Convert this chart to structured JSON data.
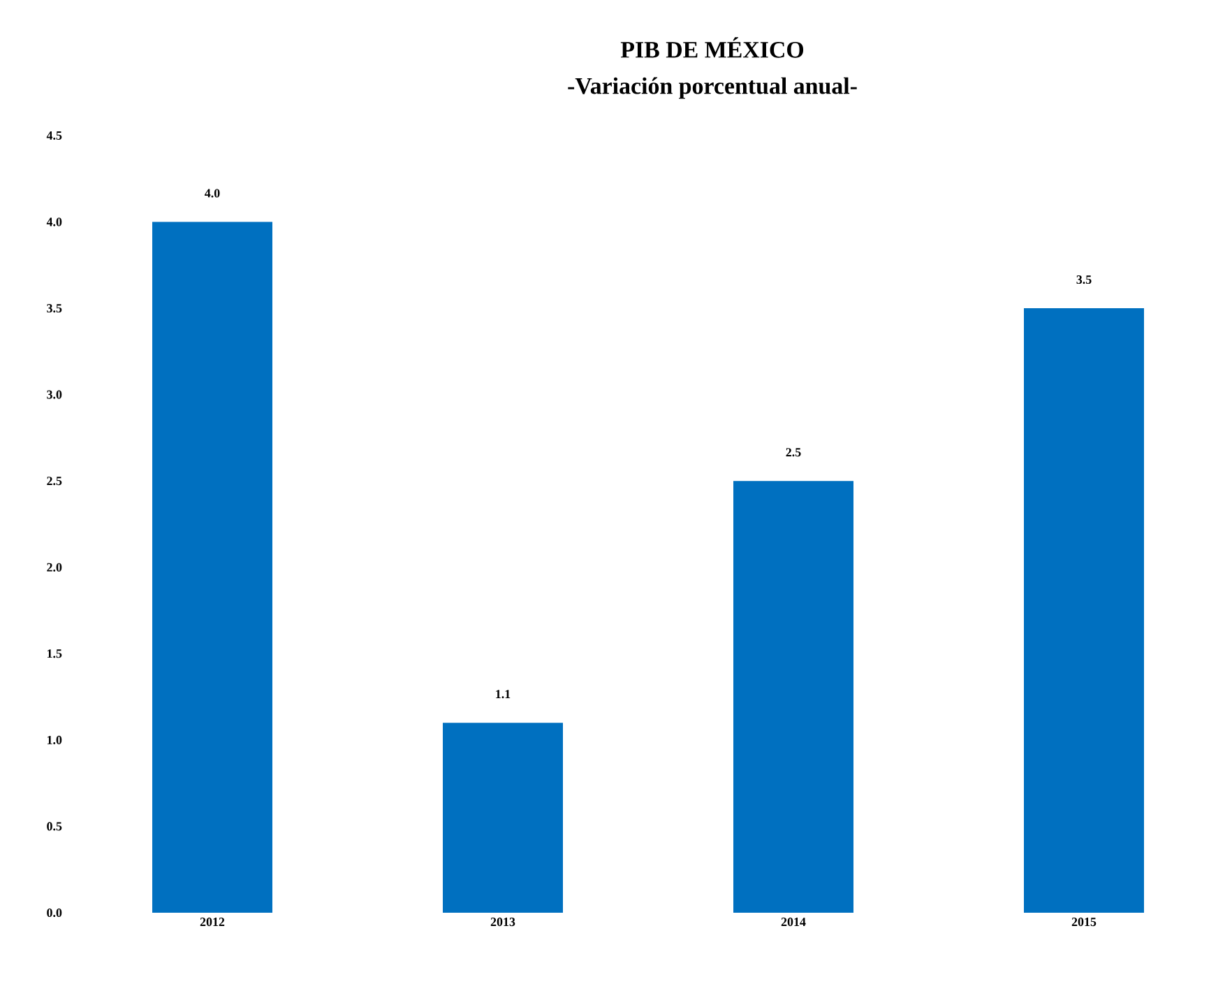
{
  "chart_data": {
    "type": "bar",
    "title": "PIB DE MÉXICO",
    "subtitle": "-Variación porcentual anual-",
    "categories": [
      "2012",
      "2013",
      "2014",
      "2015"
    ],
    "values": [
      4.0,
      1.1,
      2.5,
      3.5
    ],
    "value_labels": [
      "4.0",
      "1.1",
      "2.5",
      "3.5"
    ],
    "color": "#0070c0",
    "ylim": [
      0,
      4.5
    ],
    "yticks": [
      {
        "value": 0,
        "label": "0.0"
      },
      {
        "value": 0.5,
        "label": "0.5"
      },
      {
        "value": 1,
        "label": "1.0"
      },
      {
        "value": 1.5,
        "label": "1.5"
      },
      {
        "value": 2,
        "label": "2.0"
      },
      {
        "value": 2.5,
        "label": "2.5"
      },
      {
        "value": 3,
        "label": "3.0"
      },
      {
        "value": 3.5,
        "label": "3.5"
      },
      {
        "value": 4,
        "label": "4.0"
      },
      {
        "value": 4.5,
        "label": "4.5"
      }
    ],
    "grid": false
  }
}
